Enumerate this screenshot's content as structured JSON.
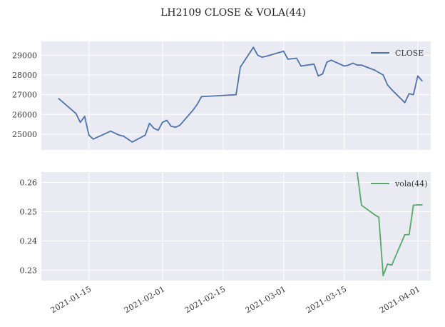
{
  "figure": {
    "title": "LH2109 CLOSE & VOLA(44)"
  },
  "theme": {
    "panel_bg": "#eaeaf2",
    "grid": "#ffffff",
    "text": "#333333",
    "close_color": "#4c72b0",
    "vola_color": "#55a868"
  },
  "chart_data": [
    {
      "type": "line",
      "title": "",
      "xlabel": "",
      "ylabel": "",
      "legend": "top-right",
      "grid": true,
      "xlim": [
        "2021-01-04",
        "2021-04-04"
      ],
      "ylim": [
        24200,
        29700
      ],
      "yticks": [
        25000,
        26000,
        27000,
        28000,
        29000
      ],
      "series": [
        {
          "name": "CLOSE",
          "x": [
            "2021-01-08",
            "2021-01-12",
            "2021-01-13",
            "2021-01-14",
            "2021-01-15",
            "2021-01-16",
            "2021-01-20",
            "2021-01-22",
            "2021-01-23",
            "2021-01-25",
            "2021-01-28",
            "2021-01-29",
            "2021-01-30",
            "2021-01-31",
            "2021-02-01",
            "2021-02-02",
            "2021-02-03",
            "2021-02-04",
            "2021-02-05",
            "2021-02-08",
            "2021-02-09",
            "2021-02-10",
            "2021-02-18",
            "2021-02-19",
            "2021-02-22",
            "2021-02-23",
            "2021-02-24",
            "2021-02-25",
            "2021-03-01",
            "2021-03-02",
            "2021-03-04",
            "2021-03-05",
            "2021-03-08",
            "2021-03-09",
            "2021-03-10",
            "2021-03-11",
            "2021-03-12",
            "2021-03-15",
            "2021-03-16",
            "2021-03-17",
            "2021-03-18",
            "2021-03-19",
            "2021-03-22",
            "2021-03-24",
            "2021-03-25",
            "2021-03-26",
            "2021-03-29",
            "2021-03-30",
            "2021-03-31",
            "2021-04-01",
            "2021-04-02"
          ],
          "values": [
            26800,
            26050,
            25600,
            25900,
            24950,
            24750,
            25150,
            24950,
            24900,
            24600,
            24950,
            25550,
            25300,
            25200,
            25600,
            25700,
            25400,
            25350,
            25450,
            26200,
            26500,
            26900,
            27000,
            28400,
            29400,
            29000,
            28900,
            28950,
            29200,
            28800,
            28850,
            28450,
            28550,
            27950,
            28050,
            28650,
            28750,
            28450,
            28500,
            28600,
            28500,
            28500,
            28250,
            28000,
            27500,
            27250,
            26600,
            27050,
            27000,
            27950,
            27700
          ]
        }
      ]
    },
    {
      "type": "line",
      "title": "",
      "xlabel": "",
      "ylabel": "",
      "legend": "top-right",
      "grid": true,
      "xlim": [
        "2021-01-04",
        "2021-04-04"
      ],
      "ylim": [
        0.2265,
        0.2635
      ],
      "yticks": [
        0.23,
        0.24,
        0.25,
        0.26
      ],
      "xticks": [
        "2021-01-15",
        "2021-02-01",
        "2021-02-15",
        "2021-03-01",
        "2021-03-15",
        "2021-04-01"
      ],
      "series": [
        {
          "name": "vola(44)",
          "x": [
            "2021-03-18",
            "2021-03-19",
            "2021-03-22",
            "2021-03-23",
            "2021-03-24",
            "2021-03-25",
            "2021-03-26",
            "2021-03-29",
            "2021-03-30",
            "2021-03-31",
            "2021-04-01",
            "2021-04-02"
          ],
          "values": [
            0.2633,
            0.2522,
            0.249,
            0.2481,
            0.2282,
            0.2321,
            0.2318,
            0.2421,
            0.2422,
            0.2522,
            0.2523,
            0.2523
          ]
        }
      ]
    }
  ]
}
